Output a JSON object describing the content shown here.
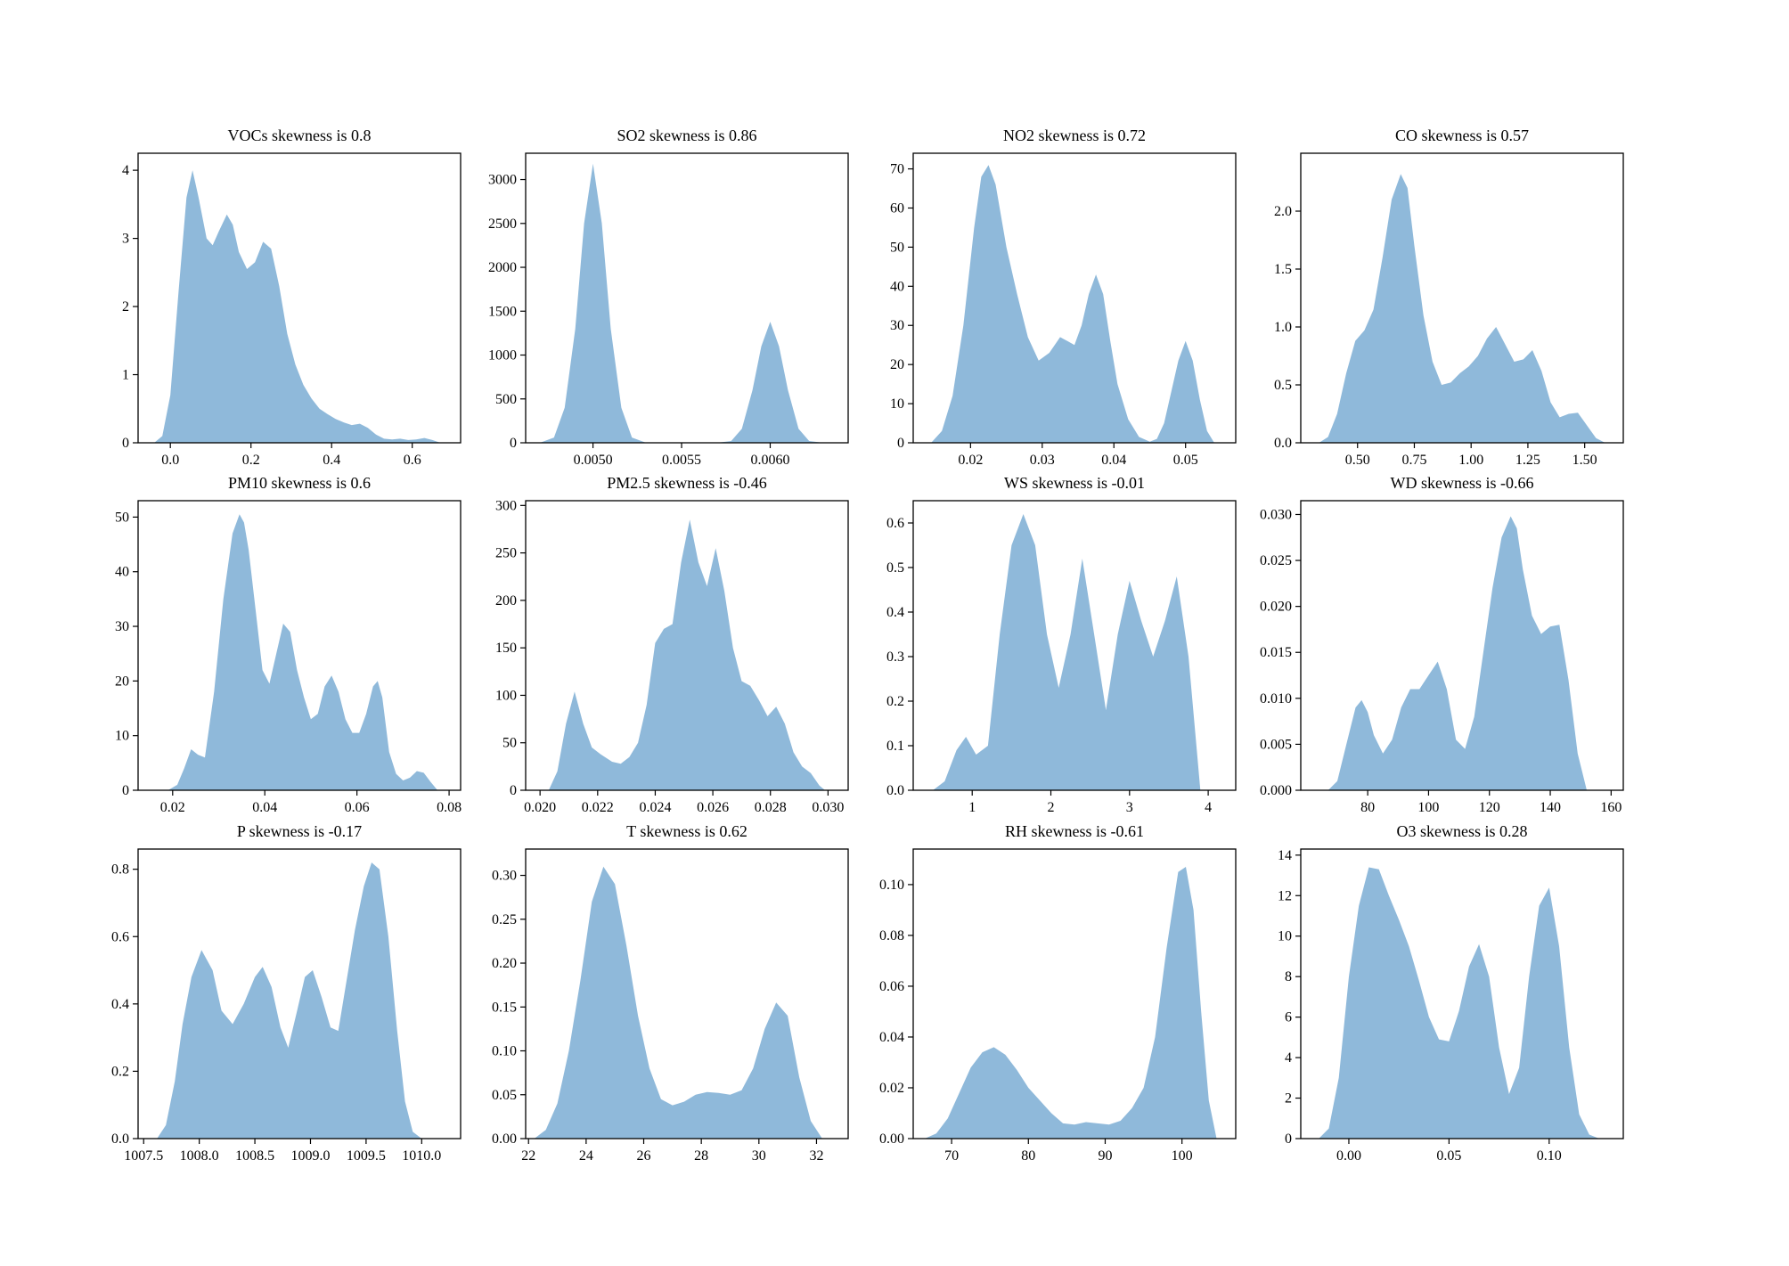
{
  "figure": {
    "fill_color": "#8fb9da",
    "frame_color": "#000000"
  },
  "chart_data": [
    {
      "type": "area",
      "title": "VOCs   skewness is 0.8",
      "xlim": [
        -0.08,
        0.72
      ],
      "ylim": [
        0,
        4.25
      ],
      "xticks": [
        0.0,
        0.2,
        0.4,
        0.6
      ],
      "xtick_labels": [
        "0.0",
        "0.2",
        "0.4",
        "0.6"
      ],
      "yticks": [
        0,
        1,
        2,
        3,
        4
      ],
      "ytick_labels": [
        "0",
        "1",
        "2",
        "3",
        "4"
      ],
      "x": [
        -0.04,
        -0.02,
        0.0,
        0.02,
        0.04,
        0.055,
        0.07,
        0.09,
        0.105,
        0.12,
        0.14,
        0.155,
        0.17,
        0.19,
        0.21,
        0.23,
        0.25,
        0.27,
        0.29,
        0.31,
        0.33,
        0.35,
        0.37,
        0.39,
        0.41,
        0.43,
        0.45,
        0.47,
        0.49,
        0.51,
        0.53,
        0.55,
        0.57,
        0.59,
        0.61,
        0.63,
        0.65,
        0.67
      ],
      "y": [
        0.0,
        0.1,
        0.7,
        2.2,
        3.6,
        4.0,
        3.6,
        3.0,
        2.9,
        3.1,
        3.35,
        3.2,
        2.8,
        2.55,
        2.65,
        2.95,
        2.85,
        2.3,
        1.6,
        1.15,
        0.85,
        0.65,
        0.5,
        0.42,
        0.35,
        0.3,
        0.26,
        0.28,
        0.22,
        0.12,
        0.06,
        0.05,
        0.06,
        0.04,
        0.05,
        0.07,
        0.04,
        0.0
      ]
    },
    {
      "type": "area",
      "title": "SO2   skewness is 0.86",
      "xlim": [
        0.00462,
        0.00644
      ],
      "ylim": [
        0,
        3300
      ],
      "xticks": [
        0.005,
        0.0055,
        0.006
      ],
      "xtick_labels": [
        "0.0050",
        "0.0055",
        "0.0060"
      ],
      "yticks": [
        0,
        500,
        1000,
        1500,
        2000,
        2500,
        3000
      ],
      "ytick_labels": [
        "0",
        "500",
        "1000",
        "1500",
        "2000",
        "2500",
        "3000"
      ],
      "x": [
        0.0047,
        0.00478,
        0.00484,
        0.0049,
        0.00495,
        0.005,
        0.00505,
        0.0051,
        0.00516,
        0.00522,
        0.0053,
        0.0054,
        0.0055,
        0.0056,
        0.0057,
        0.00578,
        0.00584,
        0.0059,
        0.00595,
        0.006,
        0.00605,
        0.0061,
        0.00616,
        0.00622,
        0.0063
      ],
      "y": [
        0,
        60,
        400,
        1300,
        2500,
        3180,
        2500,
        1300,
        400,
        60,
        0,
        0,
        0,
        0,
        0,
        20,
        160,
        600,
        1100,
        1380,
        1100,
        600,
        160,
        20,
        0
      ]
    },
    {
      "type": "area",
      "title": "NO2   skewness is 0.72",
      "xlim": [
        0.012,
        0.057
      ],
      "ylim": [
        0,
        74
      ],
      "xticks": [
        0.02,
        0.03,
        0.04,
        0.05
      ],
      "xtick_labels": [
        "0.02",
        "0.03",
        "0.04",
        "0.05"
      ],
      "yticks": [
        0,
        10,
        20,
        30,
        40,
        50,
        60,
        70
      ],
      "ytick_labels": [
        "0",
        "10",
        "20",
        "30",
        "40",
        "50",
        "60",
        "70"
      ],
      "x": [
        0.0145,
        0.016,
        0.0175,
        0.019,
        0.0205,
        0.0215,
        0.0225,
        0.0235,
        0.025,
        0.0265,
        0.028,
        0.0295,
        0.031,
        0.0325,
        0.0335,
        0.0345,
        0.0355,
        0.0365,
        0.0375,
        0.0385,
        0.0395,
        0.0405,
        0.042,
        0.0435,
        0.045,
        0.046,
        0.047,
        0.048,
        0.049,
        0.05,
        0.051,
        0.052,
        0.053,
        0.054
      ],
      "y": [
        0,
        3,
        12,
        30,
        55,
        68,
        71,
        66,
        50,
        38,
        27,
        21,
        23,
        27,
        26,
        25,
        30,
        38,
        43,
        38,
        26,
        15,
        6,
        1.5,
        0.3,
        1,
        5,
        13,
        21,
        26,
        21,
        11,
        3,
        0
      ]
    },
    {
      "type": "area",
      "title": "CO   skewness is 0.57",
      "xlim": [
        0.25,
        1.67
      ],
      "ylim": [
        0,
        2.5
      ],
      "xticks": [
        0.5,
        0.75,
        1.0,
        1.25,
        1.5
      ],
      "xtick_labels": [
        "0.50",
        "0.75",
        "1.00",
        "1.25",
        "1.50"
      ],
      "yticks": [
        0.0,
        0.5,
        1.0,
        1.5,
        2.0
      ],
      "ytick_labels": [
        "0.0",
        "0.5",
        "1.0",
        "1.5",
        "2.0"
      ],
      "x": [
        0.33,
        0.37,
        0.41,
        0.45,
        0.49,
        0.53,
        0.57,
        0.61,
        0.65,
        0.69,
        0.72,
        0.75,
        0.79,
        0.83,
        0.87,
        0.91,
        0.95,
        0.99,
        1.03,
        1.07,
        1.11,
        1.15,
        1.19,
        1.23,
        1.27,
        1.31,
        1.35,
        1.39,
        1.43,
        1.47,
        1.51,
        1.55,
        1.59
      ],
      "y": [
        0,
        0.05,
        0.25,
        0.6,
        0.88,
        0.97,
        1.15,
        1.6,
        2.1,
        2.32,
        2.2,
        1.7,
        1.1,
        0.7,
        0.5,
        0.52,
        0.6,
        0.66,
        0.75,
        0.9,
        1.0,
        0.85,
        0.7,
        0.72,
        0.8,
        0.62,
        0.35,
        0.22,
        0.25,
        0.26,
        0.15,
        0.04,
        0
      ]
    },
    {
      "type": "area",
      "title": "PM10   skewness is 0.6",
      "xlim": [
        0.0125,
        0.0825
      ],
      "ylim": [
        0,
        53
      ],
      "xticks": [
        0.02,
        0.04,
        0.06,
        0.08
      ],
      "xtick_labels": [
        "0.02",
        "0.04",
        "0.06",
        "0.08"
      ],
      "yticks": [
        0,
        10,
        20,
        30,
        40,
        50
      ],
      "ytick_labels": [
        "0",
        "10",
        "20",
        "30",
        "40",
        "50"
      ],
      "x": [
        0.019,
        0.021,
        0.0225,
        0.024,
        0.0255,
        0.027,
        0.029,
        0.031,
        0.033,
        0.0345,
        0.0355,
        0.0365,
        0.038,
        0.0395,
        0.041,
        0.0425,
        0.044,
        0.0455,
        0.047,
        0.0485,
        0.05,
        0.0515,
        0.053,
        0.0545,
        0.056,
        0.0575,
        0.059,
        0.0605,
        0.062,
        0.0635,
        0.0645,
        0.0655,
        0.067,
        0.0685,
        0.07,
        0.0715,
        0.073,
        0.0745,
        0.076,
        0.0775
      ],
      "y": [
        0,
        1,
        4,
        7.5,
        6.5,
        6,
        18,
        35,
        47,
        50.5,
        49,
        44,
        33,
        22,
        19.5,
        25,
        30.5,
        29,
        22,
        17,
        13,
        14,
        19,
        21,
        18,
        13,
        10.5,
        10.5,
        14,
        19,
        20,
        17,
        7,
        3,
        1.8,
        2.3,
        3.5,
        3.2,
        1.5,
        0
      ]
    },
    {
      "type": "area",
      "title": "PM2.5   skewness is -0.46",
      "xlim": [
        0.0195,
        0.0307
      ],
      "ylim": [
        0,
        305
      ],
      "xticks": [
        0.02,
        0.022,
        0.024,
        0.026,
        0.028,
        0.03
      ],
      "xtick_labels": [
        "0.020",
        "0.022",
        "0.024",
        "0.026",
        "0.028",
        "0.030"
      ],
      "yticks": [
        0,
        50,
        100,
        150,
        200,
        250,
        300
      ],
      "ytick_labels": [
        "0",
        "50",
        "100",
        "150",
        "200",
        "250",
        "300"
      ],
      "x": [
        0.0203,
        0.0206,
        0.0209,
        0.0212,
        0.0215,
        0.0218,
        0.0221,
        0.0225,
        0.0228,
        0.0231,
        0.0234,
        0.0237,
        0.024,
        0.0243,
        0.0246,
        0.0249,
        0.0252,
        0.0255,
        0.0258,
        0.0261,
        0.0264,
        0.0267,
        0.027,
        0.0273,
        0.0276,
        0.0279,
        0.0282,
        0.0285,
        0.0288,
        0.0291,
        0.0294,
        0.0297,
        0.0299
      ],
      "y": [
        0,
        20,
        70,
        104,
        70,
        45,
        38,
        30,
        28,
        35,
        50,
        90,
        155,
        170,
        175,
        240,
        285,
        240,
        215,
        255,
        210,
        150,
        115,
        110,
        95,
        78,
        88,
        70,
        40,
        25,
        18,
        5,
        0
      ]
    },
    {
      "type": "area",
      "title": "WS   skewness is -0.01",
      "xlim": [
        0.25,
        4.35
      ],
      "ylim": [
        0,
        0.65
      ],
      "xticks": [
        1,
        2,
        3,
        4
      ],
      "xtick_labels": [
        "1",
        "2",
        "3",
        "4"
      ],
      "yticks": [
        0.0,
        0.1,
        0.2,
        0.3,
        0.4,
        0.5,
        0.6
      ],
      "ytick_labels": [
        "0.0",
        "0.1",
        "0.2",
        "0.3",
        "0.4",
        "0.5",
        "0.6"
      ],
      "x": [
        0.5,
        0.65,
        0.8,
        0.92,
        1.05,
        1.2,
        1.35,
        1.5,
        1.65,
        1.8,
        1.95,
        2.1,
        2.25,
        2.4,
        2.55,
        2.7,
        2.85,
        3.0,
        3.15,
        3.3,
        3.45,
        3.6,
        3.75,
        3.9
      ],
      "y": [
        0,
        0.02,
        0.09,
        0.12,
        0.08,
        0.1,
        0.35,
        0.55,
        0.62,
        0.55,
        0.35,
        0.23,
        0.35,
        0.52,
        0.35,
        0.18,
        0.35,
        0.47,
        0.38,
        0.3,
        0.38,
        0.48,
        0.3,
        0
      ]
    },
    {
      "type": "area",
      "title": "WD   skewness is -0.66",
      "xlim": [
        58,
        164
      ],
      "ylim": [
        0,
        0.0315
      ],
      "xticks": [
        80,
        100,
        120,
        140,
        160
      ],
      "xtick_labels": [
        "80",
        "100",
        "120",
        "140",
        "160"
      ],
      "yticks": [
        0.0,
        0.005,
        0.01,
        0.015,
        0.02,
        0.025,
        0.03
      ],
      "ytick_labels": [
        "0.000",
        "0.005",
        "0.010",
        "0.015",
        "0.020",
        "0.025",
        "0.030"
      ],
      "x": [
        67,
        70,
        73,
        76,
        78,
        80,
        82,
        85,
        88,
        91,
        94,
        97,
        100,
        103,
        106,
        109,
        112,
        115,
        118,
        121,
        124,
        127,
        129,
        131,
        134,
        137,
        140,
        143,
        146,
        149,
        152
      ],
      "y": [
        0,
        0.001,
        0.005,
        0.009,
        0.0098,
        0.0085,
        0.006,
        0.004,
        0.0055,
        0.009,
        0.011,
        0.011,
        0.0125,
        0.014,
        0.011,
        0.0055,
        0.0045,
        0.008,
        0.015,
        0.022,
        0.0275,
        0.0298,
        0.0285,
        0.024,
        0.019,
        0.017,
        0.0178,
        0.018,
        0.012,
        0.004,
        0
      ]
    },
    {
      "type": "area",
      "title": "P   skewness is -0.17",
      "xlim": [
        1007.45,
        1010.35
      ],
      "ylim": [
        0,
        0.86
      ],
      "xticks": [
        1007.5,
        1008.0,
        1008.5,
        1009.0,
        1009.5,
        1010.0
      ],
      "xtick_labels": [
        "1007.5",
        "1008.0",
        "1008.5",
        "1009.0",
        "1009.5",
        "1010.0"
      ],
      "yticks": [
        0.0,
        0.2,
        0.4,
        0.6,
        0.8
      ],
      "ytick_labels": [
        "0.0",
        "0.2",
        "0.4",
        "0.6",
        "0.8"
      ],
      "x": [
        1007.62,
        1007.7,
        1007.78,
        1007.85,
        1007.93,
        1008.02,
        1008.12,
        1008.2,
        1008.3,
        1008.4,
        1008.5,
        1008.57,
        1008.65,
        1008.73,
        1008.8,
        1008.88,
        1008.95,
        1009.02,
        1009.1,
        1009.18,
        1009.25,
        1009.32,
        1009.4,
        1009.48,
        1009.55,
        1009.62,
        1009.7,
        1009.78,
        1009.85,
        1009.92,
        1010.0
      ],
      "y": [
        0,
        0.04,
        0.17,
        0.34,
        0.48,
        0.56,
        0.5,
        0.38,
        0.34,
        0.4,
        0.48,
        0.51,
        0.45,
        0.33,
        0.27,
        0.38,
        0.48,
        0.5,
        0.42,
        0.33,
        0.32,
        0.46,
        0.62,
        0.75,
        0.82,
        0.8,
        0.6,
        0.32,
        0.11,
        0.02,
        0
      ]
    },
    {
      "type": "area",
      "title": "T   skewness is 0.62",
      "xlim": [
        21.9,
        33.1
      ],
      "ylim": [
        0,
        0.33
      ],
      "xticks": [
        22,
        24,
        26,
        28,
        30,
        32
      ],
      "xtick_labels": [
        "22",
        "24",
        "26",
        "28",
        "30",
        "32"
      ],
      "yticks": [
        0.0,
        0.05,
        0.1,
        0.15,
        0.2,
        0.25,
        0.3
      ],
      "ytick_labels": [
        "0.00",
        "0.05",
        "0.10",
        "0.15",
        "0.20",
        "0.25",
        "0.30"
      ],
      "x": [
        22.2,
        22.6,
        23.0,
        23.4,
        23.8,
        24.2,
        24.6,
        25.0,
        25.4,
        25.8,
        26.2,
        26.6,
        27.0,
        27.4,
        27.8,
        28.2,
        28.6,
        29.0,
        29.4,
        29.8,
        30.2,
        30.6,
        31.0,
        31.4,
        31.8,
        32.2
      ],
      "y": [
        0,
        0.01,
        0.04,
        0.1,
        0.18,
        0.27,
        0.31,
        0.29,
        0.22,
        0.14,
        0.08,
        0.045,
        0.038,
        0.042,
        0.05,
        0.053,
        0.052,
        0.05,
        0.055,
        0.08,
        0.125,
        0.155,
        0.14,
        0.07,
        0.02,
        0
      ]
    },
    {
      "type": "area",
      "title": "RH   skewness is -0.61",
      "xlim": [
        65,
        107
      ],
      "ylim": [
        0,
        0.114
      ],
      "xticks": [
        70,
        80,
        90,
        100
      ],
      "xtick_labels": [
        "70",
        "80",
        "90",
        "100"
      ],
      "yticks": [
        0.0,
        0.02,
        0.04,
        0.06,
        0.08,
        0.1
      ],
      "ytick_labels": [
        "0.00",
        "0.02",
        "0.04",
        "0.06",
        "0.08",
        "0.10"
      ],
      "x": [
        66.5,
        68,
        69.5,
        71,
        72.5,
        74,
        75.5,
        77,
        78.5,
        80,
        81.5,
        83,
        84.5,
        86,
        87.5,
        89,
        90.5,
        92,
        93.5,
        95,
        96.5,
        98,
        99.5,
        100.5,
        101.5,
        102.5,
        103.5,
        104.5
      ],
      "y": [
        0,
        0.002,
        0.008,
        0.018,
        0.028,
        0.034,
        0.036,
        0.033,
        0.027,
        0.02,
        0.015,
        0.01,
        0.006,
        0.0055,
        0.0065,
        0.006,
        0.0055,
        0.007,
        0.012,
        0.02,
        0.04,
        0.075,
        0.105,
        0.107,
        0.09,
        0.05,
        0.015,
        0
      ]
    },
    {
      "type": "area",
      "title": "O3   skewness is 0.28",
      "xlim": [
        -0.024,
        0.137
      ],
      "ylim": [
        0,
        14.3
      ],
      "xticks": [
        0.0,
        0.05,
        0.1
      ],
      "xtick_labels": [
        "0.00",
        "0.05",
        "0.10"
      ],
      "yticks": [
        0,
        2,
        4,
        6,
        8,
        10,
        12,
        14
      ],
      "ytick_labels": [
        "0",
        "2",
        "4",
        "6",
        "8",
        "10",
        "12",
        "14"
      ],
      "x": [
        -0.015,
        -0.01,
        -0.005,
        0.0,
        0.005,
        0.01,
        0.015,
        0.02,
        0.025,
        0.03,
        0.035,
        0.04,
        0.045,
        0.05,
        0.055,
        0.06,
        0.065,
        0.07,
        0.075,
        0.08,
        0.085,
        0.09,
        0.095,
        0.1,
        0.105,
        0.11,
        0.115,
        0.12,
        0.125
      ],
      "y": [
        0,
        0.5,
        3,
        8,
        11.5,
        13.4,
        13.3,
        12,
        10.8,
        9.5,
        7.8,
        6,
        4.9,
        4.8,
        6.3,
        8.5,
        9.6,
        8,
        4.5,
        2.2,
        3.5,
        8,
        11.5,
        12.4,
        9.5,
        4.5,
        1.2,
        0.2,
        0
      ]
    }
  ]
}
